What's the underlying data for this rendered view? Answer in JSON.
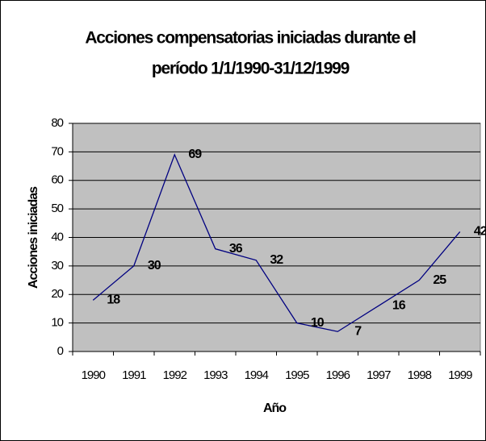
{
  "chart_data": {
    "type": "line",
    "title": [
      "Acciones compensatorias iniciadas durante el",
      "período 1/1/1990-31/12/1999"
    ],
    "x_label": "Año",
    "y_label": "Acciones iniciadas",
    "categories": [
      "1990",
      "1991",
      "1992",
      "1993",
      "1994",
      "1995",
      "1996",
      "1997",
      "1998",
      "1999"
    ],
    "series": [
      {
        "name": "Acciones iniciadas",
        "color": "#000080",
        "values": [
          18,
          30,
          69,
          36,
          32,
          10,
          7,
          16,
          25,
          42
        ]
      }
    ],
    "ylim": [
      0,
      80
    ],
    "yticks": [
      0,
      10,
      20,
      30,
      40,
      50,
      60,
      70,
      80
    ],
    "grid": true,
    "data_labels": true,
    "plot_background": "#c0c0c0"
  }
}
